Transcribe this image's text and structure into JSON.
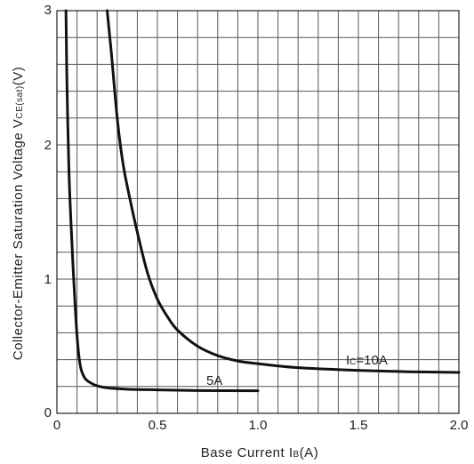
{
  "chart_data": {
    "type": "line",
    "title": "",
    "xlabel": {
      "main": "Base Current I",
      "sub": "B",
      "unit": "(A)"
    },
    "ylabel": {
      "main": "Collector-Emitter Saturation Voltage V",
      "sub": "CE(sat)",
      "unit": "(V)"
    },
    "xlim": [
      0,
      2.0
    ],
    "ylim": [
      0,
      3
    ],
    "grid": true,
    "x_major_ticks": [
      0,
      0.5,
      1.0,
      1.5,
      2.0
    ],
    "x_tick_labels": [
      "0",
      "0.5",
      "1.0",
      "1.5",
      "2.0"
    ],
    "y_major_ticks": [
      0,
      1,
      2,
      3
    ],
    "y_tick_labels": [
      "0",
      "1",
      "2",
      "3"
    ],
    "x_minor_step": 0.1,
    "y_minor_step": 0.2,
    "series": [
      {
        "name": "5A",
        "label": {
          "main": "5A",
          "sub": ""
        },
        "points": [
          [
            0.045,
            3.0
          ],
          [
            0.05,
            2.45
          ],
          [
            0.06,
            1.8
          ],
          [
            0.07,
            1.42
          ],
          [
            0.08,
            1.1
          ],
          [
            0.09,
            0.82
          ],
          [
            0.1,
            0.58
          ],
          [
            0.11,
            0.42
          ],
          [
            0.12,
            0.33
          ],
          [
            0.14,
            0.26
          ],
          [
            0.17,
            0.225
          ],
          [
            0.2,
            0.205
          ],
          [
            0.25,
            0.19
          ],
          [
            0.35,
            0.18
          ],
          [
            0.5,
            0.175
          ],
          [
            0.7,
            0.17
          ],
          [
            1.0,
            0.168
          ]
        ]
      },
      {
        "name": "Ic=10A",
        "label": {
          "main": "I",
          "sub": "C",
          "rest": "=10A"
        },
        "points": [
          [
            0.25,
            3.0
          ],
          [
            0.27,
            2.7
          ],
          [
            0.3,
            2.2
          ],
          [
            0.33,
            1.85
          ],
          [
            0.37,
            1.55
          ],
          [
            0.4,
            1.35
          ],
          [
            0.45,
            1.05
          ],
          [
            0.5,
            0.85
          ],
          [
            0.55,
            0.72
          ],
          [
            0.6,
            0.62
          ],
          [
            0.7,
            0.5
          ],
          [
            0.8,
            0.43
          ],
          [
            0.9,
            0.39
          ],
          [
            1.0,
            0.37
          ],
          [
            1.2,
            0.34
          ],
          [
            1.5,
            0.32
          ],
          [
            1.75,
            0.31
          ],
          [
            2.0,
            0.305
          ]
        ]
      }
    ]
  }
}
